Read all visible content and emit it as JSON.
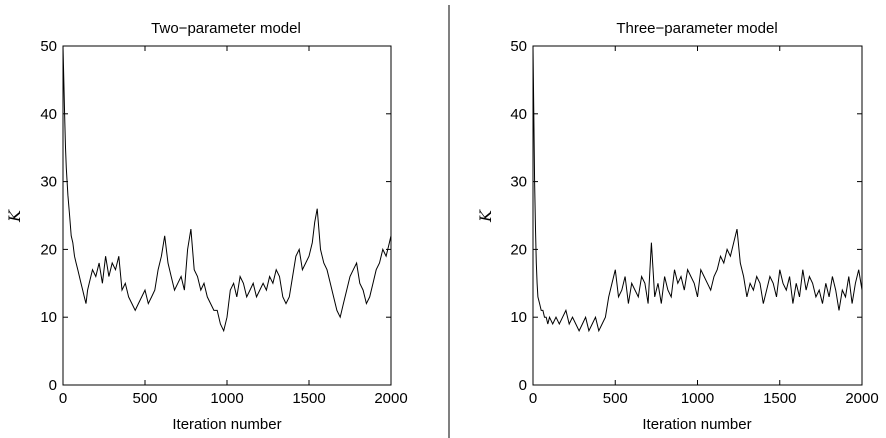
{
  "chart_data": [
    {
      "type": "line",
      "title": "Two−parameter model",
      "xlabel": "Iteration number",
      "ylabel": "K",
      "xlim": [
        0,
        2000
      ],
      "ylim": [
        0,
        50
      ],
      "xticks": [
        0,
        500,
        1000,
        1500,
        2000
      ],
      "yticks": [
        0,
        10,
        20,
        30,
        40,
        50
      ],
      "grid": false,
      "series": [
        {
          "x": [
            0,
            5,
            10,
            15,
            20,
            25,
            30,
            40,
            50,
            60,
            70,
            80,
            90,
            100,
            110,
            120,
            130,
            140,
            150,
            160,
            180,
            200,
            220,
            240,
            260,
            280,
            300,
            320,
            340,
            360,
            380,
            400,
            420,
            440,
            460,
            480,
            500,
            520,
            540,
            560,
            580,
            600,
            620,
            640,
            660,
            680,
            700,
            720,
            740,
            750,
            760,
            780,
            800,
            820,
            840,
            860,
            880,
            900,
            920,
            940,
            960,
            980,
            1000,
            1020,
            1040,
            1060,
            1080,
            1100,
            1120,
            1140,
            1160,
            1180,
            1200,
            1220,
            1240,
            1260,
            1280,
            1300,
            1320,
            1340,
            1360,
            1380,
            1400,
            1420,
            1440,
            1460,
            1480,
            1500,
            1520,
            1535,
            1550,
            1570,
            1590,
            1610,
            1630,
            1650,
            1670,
            1690,
            1710,
            1730,
            1750,
            1770,
            1790,
            1810,
            1830,
            1850,
            1870,
            1890,
            1910,
            1930,
            1950,
            1970,
            1990,
            2000
          ],
          "y": [
            50,
            45,
            40,
            35,
            32,
            30,
            28,
            25,
            22,
            21,
            19,
            18,
            17,
            16,
            15,
            14,
            13,
            12,
            14,
            15,
            17,
            16,
            18,
            15,
            19,
            16,
            18,
            17,
            19,
            14,
            15,
            13,
            12,
            11,
            12,
            13,
            14,
            12,
            13,
            14,
            17,
            19,
            22,
            18,
            16,
            14,
            15,
            16,
            14,
            17,
            20,
            23,
            17,
            16,
            14,
            15,
            13,
            12,
            11,
            11,
            9,
            8,
            10,
            14,
            15,
            13,
            16,
            15,
            13,
            14,
            15,
            13,
            14,
            15,
            14,
            16,
            15,
            17,
            16,
            13,
            12,
            13,
            16,
            19,
            20,
            17,
            18,
            19,
            21,
            24,
            26,
            20,
            18,
            17,
            15,
            13,
            11,
            10,
            12,
            14,
            16,
            17,
            18,
            15,
            14,
            12,
            13,
            15,
            17,
            18,
            20,
            19,
            21,
            22
          ]
        }
      ]
    },
    {
      "type": "line",
      "title": "Three−parameter model",
      "xlabel": "Iteration number",
      "ylabel": "K",
      "xlim": [
        0,
        2000
      ],
      "ylim": [
        0,
        50
      ],
      "xticks": [
        0,
        500,
        1000,
        1500,
        2000
      ],
      "yticks": [
        0,
        10,
        20,
        30,
        40,
        50
      ],
      "grid": false,
      "series": [
        {
          "x": [
            0,
            5,
            10,
            15,
            20,
            25,
            30,
            40,
            50,
            60,
            70,
            80,
            90,
            100,
            120,
            140,
            160,
            180,
            200,
            220,
            240,
            260,
            280,
            300,
            320,
            340,
            360,
            380,
            400,
            420,
            440,
            460,
            480,
            500,
            520,
            540,
            560,
            580,
            600,
            620,
            640,
            660,
            680,
            700,
            720,
            740,
            760,
            780,
            800,
            820,
            840,
            860,
            880,
            900,
            920,
            940,
            960,
            980,
            1000,
            1020,
            1040,
            1060,
            1080,
            1100,
            1120,
            1140,
            1160,
            1180,
            1200,
            1220,
            1240,
            1260,
            1280,
            1300,
            1320,
            1340,
            1360,
            1380,
            1400,
            1420,
            1440,
            1460,
            1480,
            1500,
            1520,
            1540,
            1560,
            1580,
            1600,
            1620,
            1640,
            1660,
            1680,
            1700,
            1720,
            1740,
            1760,
            1780,
            1800,
            1820,
            1840,
            1860,
            1880,
            1900,
            1920,
            1940,
            1960,
            1980,
            2000
          ],
          "y": [
            50,
            40,
            30,
            23,
            18,
            15,
            13,
            12,
            11,
            11,
            10,
            10,
            9,
            10,
            9,
            10,
            9,
            10,
            11,
            9,
            10,
            9,
            8,
            9,
            10,
            8,
            9,
            10,
            8,
            9,
            10,
            13,
            15,
            17,
            13,
            14,
            16,
            12,
            15,
            14,
            13,
            16,
            15,
            12,
            21,
            13,
            15,
            12,
            16,
            14,
            13,
            17,
            15,
            16,
            14,
            17,
            16,
            15,
            13,
            17,
            16,
            15,
            14,
            16,
            17,
            19,
            18,
            20,
            19,
            21,
            23,
            18,
            16,
            13,
            15,
            14,
            16,
            15,
            12,
            14,
            16,
            15,
            13,
            17,
            15,
            14,
            16,
            12,
            15,
            13,
            17,
            14,
            16,
            15,
            13,
            14,
            12,
            15,
            13,
            16,
            14,
            11,
            14,
            13,
            16,
            12,
            15,
            17,
            14
          ]
        }
      ]
    }
  ]
}
